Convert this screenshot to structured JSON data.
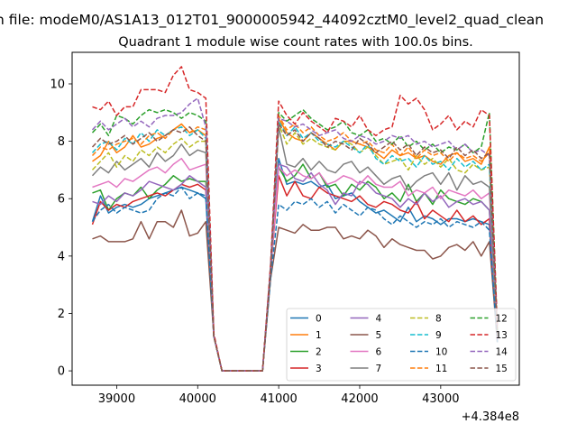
{
  "chart_data": {
    "type": "line",
    "suptitle": "n file: modeM0/AS1A13_012T01_9000005942_44092cztM0_level2_quad_clean",
    "title": "Quadrant 1 module wise count rates with 100.0s bins.",
    "xlabel": "",
    "ylabel": "",
    "x_offset_label": "+4.384e8",
    "xlim": [
      38450,
      43970
    ],
    "ylim": [
      -0.5,
      11.1
    ],
    "xticks": [
      39000,
      40000,
      41000,
      42000,
      43000
    ],
    "yticks": [
      0,
      2,
      4,
      6,
      8,
      10
    ],
    "grid": false,
    "legend": {
      "placement": "lower-right",
      "columns": 4
    },
    "x": [
      38700,
      38800,
      38900,
      39000,
      39100,
      39200,
      39300,
      39400,
      39500,
      39600,
      39700,
      39800,
      39900,
      40000,
      40100,
      40200,
      40300,
      40400,
      40500,
      40600,
      40700,
      40800,
      40900,
      41000,
      41100,
      41200,
      41300,
      41400,
      41500,
      41600,
      41700,
      41800,
      41900,
      42000,
      42100,
      42200,
      42300,
      42400,
      42500,
      42600,
      42700,
      42800,
      42900,
      43000,
      43100,
      43200,
      43300,
      43400,
      43500,
      43600,
      43700
    ],
    "series": [
      {
        "name": "0",
        "color": "#1f77b4",
        "dash": "solid",
        "values": [
          5.2,
          6.1,
          5.5,
          5.7,
          5.8,
          5.7,
          5.8,
          6.0,
          6.1,
          6.2,
          6.3,
          6.4,
          6.3,
          6.2,
          6.0,
          1.2,
          0,
          0,
          0,
          0,
          0,
          0,
          3.5,
          7.4,
          6.5,
          6.6,
          6.5,
          6.6,
          6.4,
          6.5,
          6.0,
          6.1,
          6.2,
          5.9,
          5.7,
          5.5,
          5.6,
          5.4,
          5.2,
          5.7,
          5.2,
          5.4,
          5.3,
          5.1,
          5.3,
          5.3,
          5.2,
          5.3,
          5.2,
          5.1,
          1.0
        ]
      },
      {
        "name": "1",
        "color": "#ff7f0e",
        "dash": "solid",
        "values": [
          7.3,
          7.5,
          8.0,
          7.6,
          7.8,
          8.2,
          7.8,
          7.9,
          8.1,
          8.2,
          8.4,
          8.6,
          8.3,
          8.4,
          8.2,
          1.2,
          0,
          0,
          0,
          0,
          0,
          0,
          3.5,
          8.8,
          8.3,
          8.1,
          8.0,
          8.3,
          8.1,
          7.9,
          7.7,
          8.0,
          8.0,
          7.9,
          7.8,
          7.6,
          7.4,
          7.7,
          7.5,
          7.6,
          7.4,
          7.5,
          7.3,
          7.2,
          7.5,
          7.6,
          7.3,
          7.4,
          7.2,
          7.8,
          1.3
        ]
      },
      {
        "name": "2",
        "color": "#2ca02c",
        "dash": "solid",
        "values": [
          6.2,
          6.3,
          5.6,
          6.0,
          6.2,
          6.1,
          6.4,
          6.0,
          6.3,
          6.5,
          6.8,
          6.6,
          6.7,
          6.6,
          6.6,
          1.2,
          0,
          0,
          0,
          0,
          0,
          0,
          3.5,
          7.1,
          6.6,
          6.8,
          7.2,
          6.7,
          6.9,
          6.4,
          6.5,
          6.1,
          6.5,
          6.3,
          6.6,
          6.4,
          6.0,
          6.2,
          5.9,
          6.5,
          5.9,
          6.2,
          5.8,
          6.3,
          6.0,
          5.9,
          5.8,
          6.0,
          5.9,
          5.6,
          1.1
        ]
      },
      {
        "name": "3",
        "color": "#d62728",
        "dash": "solid",
        "values": [
          5.1,
          5.9,
          5.6,
          5.8,
          5.7,
          5.9,
          6.0,
          6.1,
          6.2,
          6.1,
          6.3,
          6.5,
          6.4,
          6.5,
          6.3,
          1.2,
          0,
          0,
          0,
          0,
          0,
          0,
          3.5,
          6.8,
          6.1,
          6.6,
          6.1,
          6.0,
          6.4,
          6.2,
          6.1,
          6.0,
          5.9,
          6.1,
          5.8,
          5.7,
          5.9,
          5.8,
          5.6,
          5.5,
          5.9,
          5.3,
          5.6,
          5.4,
          5.2,
          5.6,
          5.2,
          5.4,
          5.1,
          5.3,
          1.0
        ]
      },
      {
        "name": "4",
        "color": "#9467bd",
        "dash": "solid",
        "values": [
          5.9,
          5.8,
          6.1,
          5.9,
          6.2,
          6.1,
          6.3,
          6.6,
          6.5,
          6.4,
          6.3,
          6.5,
          6.8,
          6.6,
          6.4,
          1.2,
          0,
          0,
          0,
          0,
          0,
          0,
          3.5,
          7.2,
          7.1,
          6.7,
          6.6,
          6.9,
          6.5,
          6.3,
          5.8,
          6.2,
          6.1,
          6.6,
          6.5,
          6.2,
          6.1,
          6.0,
          5.7,
          6.0,
          5.8,
          6.2,
          5.9,
          6.1,
          5.7,
          5.9,
          6.0,
          5.8,
          5.9,
          5.6,
          1.1
        ]
      },
      {
        "name": "5",
        "color": "#8c564b",
        "dash": "solid",
        "values": [
          4.6,
          4.7,
          4.5,
          4.5,
          4.5,
          4.6,
          5.2,
          4.6,
          5.2,
          5.2,
          5.0,
          5.6,
          4.7,
          4.8,
          5.2,
          1.2,
          0,
          0,
          0,
          0,
          0,
          0,
          3.2,
          5.0,
          4.9,
          4.8,
          5.1,
          4.9,
          4.9,
          5.0,
          5.0,
          4.6,
          4.7,
          4.6,
          4.9,
          4.7,
          4.3,
          4.6,
          4.4,
          4.3,
          4.2,
          4.2,
          3.9,
          4.0,
          4.3,
          4.4,
          4.2,
          4.5,
          4.0,
          4.5,
          1.0
        ]
      },
      {
        "name": "6",
        "color": "#e377c2",
        "dash": "solid",
        "values": [
          6.4,
          6.5,
          6.6,
          6.4,
          6.7,
          6.6,
          6.8,
          7.0,
          7.1,
          6.9,
          7.2,
          7.4,
          7.0,
          7.1,
          7.2,
          1.2,
          0,
          0,
          0,
          0,
          0,
          0,
          3.5,
          7.1,
          6.8,
          7.0,
          6.8,
          6.7,
          6.9,
          6.5,
          6.6,
          6.8,
          6.7,
          6.5,
          6.8,
          6.5,
          6.4,
          6.4,
          6.6,
          6.1,
          6.3,
          6.2,
          6.4,
          6.0,
          6.3,
          6.2,
          6.1,
          6.3,
          6.0,
          6.2,
          1.1
        ]
      },
      {
        "name": "7",
        "color": "#7f7f7f",
        "dash": "solid",
        "values": [
          6.8,
          7.1,
          6.9,
          7.3,
          7.0,
          7.2,
          7.4,
          7.1,
          7.6,
          7.3,
          7.5,
          7.9,
          7.5,
          7.7,
          7.6,
          1.2,
          0,
          0,
          0,
          0,
          0,
          0,
          3.5,
          8.5,
          7.2,
          7.1,
          7.4,
          7.0,
          7.3,
          7.0,
          6.9,
          7.2,
          7.3,
          6.9,
          7.1,
          6.8,
          6.5,
          6.7,
          6.8,
          6.3,
          6.6,
          6.8,
          6.9,
          6.5,
          6.9,
          6.3,
          6.8,
          6.5,
          6.6,
          6.4,
          1.2
        ]
      },
      {
        "name": "8",
        "color": "#bcbd22",
        "dash": "dashed",
        "values": [
          7.0,
          7.3,
          7.6,
          7.1,
          7.5,
          7.3,
          7.7,
          7.5,
          7.8,
          7.6,
          7.9,
          8.1,
          7.8,
          8.0,
          8.0,
          1.2,
          0,
          0,
          0,
          0,
          0,
          0,
          3.5,
          8.6,
          7.9,
          8.3,
          7.9,
          8.1,
          7.9,
          7.8,
          7.7,
          8.0,
          7.9,
          7.6,
          7.8,
          7.5,
          7.2,
          7.3,
          7.4,
          7.0,
          7.5,
          7.2,
          7.4,
          7.1,
          7.4,
          7.0,
          6.9,
          7.2,
          7.0,
          7.1,
          1.2
        ]
      },
      {
        "name": "9",
        "color": "#17becf",
        "dash": "dashed",
        "values": [
          7.6,
          7.9,
          8.0,
          7.7,
          8.1,
          7.9,
          8.3,
          8.0,
          8.4,
          8.2,
          8.4,
          8.5,
          8.2,
          8.4,
          8.1,
          1.2,
          0,
          0,
          0,
          0,
          0,
          0,
          3.5,
          8.7,
          8.2,
          8.5,
          8.1,
          8.3,
          8.0,
          7.9,
          7.8,
          8.0,
          7.8,
          7.6,
          7.9,
          7.4,
          7.2,
          7.5,
          7.3,
          7.4,
          7.1,
          7.5,
          7.2,
          7.3,
          7.0,
          7.4,
          7.1,
          7.3,
          7.0,
          7.2,
          1.2
        ]
      },
      {
        "name": "10",
        "color": "#1f77b4",
        "dash": "dashed",
        "values": [
          5.2,
          5.6,
          5.8,
          5.5,
          5.7,
          5.6,
          5.5,
          5.6,
          6.0,
          6.2,
          6.1,
          6.4,
          6.0,
          6.2,
          6.1,
          1.2,
          0,
          0,
          0,
          0,
          0,
          0,
          3.2,
          5.8,
          5.6,
          5.9,
          5.8,
          6.0,
          5.7,
          5.9,
          5.5,
          5.8,
          5.6,
          5.4,
          5.7,
          5.6,
          5.3,
          5.1,
          5.4,
          5.2,
          5.0,
          5.2,
          5.1,
          5.3,
          5.0,
          5.2,
          5.1,
          5.0,
          5.2,
          4.9,
          1.0
        ]
      },
      {
        "name": "11",
        "color": "#ff7f0e",
        "dash": "dashed",
        "values": [
          7.5,
          7.8,
          7.7,
          7.9,
          8.0,
          8.1,
          7.9,
          8.2,
          8.3,
          8.1,
          8.4,
          8.6,
          8.3,
          8.5,
          8.4,
          1.2,
          0,
          0,
          0,
          0,
          0,
          0,
          3.5,
          8.9,
          8.4,
          8.6,
          8.3,
          8.5,
          8.2,
          8.0,
          8.1,
          8.3,
          8.0,
          7.9,
          8.0,
          7.7,
          7.6,
          7.9,
          7.5,
          7.8,
          7.4,
          7.7,
          7.5,
          7.6,
          7.3,
          7.6,
          7.4,
          7.5,
          7.3,
          7.6,
          1.3
        ]
      },
      {
        "name": "12",
        "color": "#2ca02c",
        "dash": "dashed",
        "values": [
          8.3,
          8.6,
          8.2,
          8.9,
          8.8,
          8.6,
          8.9,
          9.1,
          9.0,
          9.1,
          9.0,
          8.8,
          9.0,
          8.9,
          8.7,
          1.2,
          0,
          0,
          0,
          0,
          0,
          0,
          3.6,
          9.0,
          8.7,
          8.9,
          9.1,
          8.8,
          8.6,
          8.4,
          8.5,
          8.7,
          8.3,
          8.2,
          8.4,
          8.0,
          8.1,
          7.9,
          8.2,
          7.8,
          8.0,
          7.7,
          7.9,
          7.6,
          7.8,
          7.7,
          7.9,
          7.6,
          7.8,
          9.0,
          1.4
        ]
      },
      {
        "name": "13",
        "color": "#d62728",
        "dash": "dashed",
        "values": [
          9.2,
          9.1,
          9.4,
          8.9,
          9.2,
          9.2,
          9.8,
          9.8,
          9.8,
          9.7,
          10.3,
          10.6,
          9.8,
          9.7,
          9.5,
          1.3,
          0,
          0,
          0,
          0,
          0,
          0,
          3.7,
          9.4,
          8.9,
          8.6,
          9.0,
          8.7,
          8.5,
          8.3,
          8.8,
          8.7,
          8.5,
          8.9,
          8.4,
          8.2,
          8.4,
          8.5,
          9.6,
          9.3,
          9.5,
          9.1,
          8.4,
          8.6,
          8.9,
          8.4,
          8.7,
          8.5,
          9.1,
          8.9,
          1.5
        ]
      },
      {
        "name": "14",
        "color": "#9467bd",
        "dash": "dashed",
        "values": [
          8.4,
          8.7,
          8.4,
          8.6,
          8.8,
          8.5,
          8.7,
          8.5,
          8.8,
          8.9,
          8.9,
          9.0,
          9.3,
          9.5,
          8.5,
          1.2,
          0,
          0,
          0,
          0,
          0,
          0,
          3.6,
          8.8,
          8.7,
          8.5,
          8.6,
          8.4,
          8.2,
          8.3,
          8.4,
          8.1,
          8.0,
          8.2,
          8.1,
          7.9,
          8.0,
          8.2,
          8.1,
          8.2,
          7.9,
          8.0,
          7.8,
          7.9,
          8.0,
          7.7,
          7.9,
          7.6,
          7.7,
          7.5,
          1.3
        ]
      },
      {
        "name": "15",
        "color": "#8c564b",
        "dash": "dashed",
        "values": [
          7.8,
          8.1,
          7.9,
          8.0,
          8.2,
          7.9,
          8.1,
          8.3,
          8.0,
          8.2,
          8.4,
          8.3,
          8.5,
          8.2,
          8.0,
          1.2,
          0,
          0,
          0,
          0,
          0,
          0,
          3.5,
          8.6,
          8.2,
          8.4,
          8.0,
          8.3,
          8.1,
          7.8,
          8.0,
          7.9,
          7.7,
          8.1,
          7.9,
          7.6,
          7.8,
          8.0,
          7.7,
          7.9,
          7.5,
          7.8,
          7.6,
          7.7,
          7.4,
          7.8,
          7.5,
          7.7,
          7.4,
          7.6,
          1.2
        ]
      }
    ]
  }
}
